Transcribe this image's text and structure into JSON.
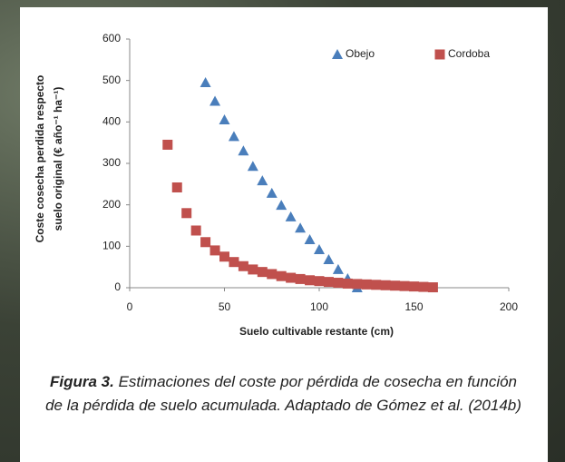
{
  "chart_data": {
    "type": "scatter",
    "x_label": "Suelo cultivable restante (cm)",
    "y_label_lines": [
      "Coste  cosecha perdida respecto",
      "suelo original (€ año⁻¹ ha⁻¹)"
    ],
    "xlim": [
      0,
      200
    ],
    "xticks": [
      0,
      50,
      100,
      150,
      200
    ],
    "ylim": [
      0,
      600
    ],
    "yticks": [
      0,
      100,
      200,
      300,
      400,
      500,
      600
    ],
    "grid": false,
    "legend": "top-right",
    "series": [
      {
        "name": "Obejo",
        "color": "#4a7ebb",
        "marker": "triangle",
        "x": [
          40,
          45,
          50,
          55,
          60,
          65,
          70,
          75,
          80,
          85,
          90,
          95,
          100,
          105,
          110,
          115,
          120
        ],
        "values": [
          495,
          450,
          405,
          365,
          330,
          293,
          258,
          228,
          199,
          171,
          144,
          116,
          92,
          68,
          44,
          22,
          0
        ]
      },
      {
        "name": "Cordoba",
        "color": "#c0504d",
        "marker": "square",
        "x": [
          20,
          25,
          30,
          35,
          40,
          45,
          50,
          55,
          60,
          65,
          70,
          75,
          80,
          85,
          90,
          95,
          100,
          105,
          110,
          115,
          120,
          125,
          130,
          135,
          140,
          145,
          150,
          155,
          160
        ],
        "values": [
          345,
          242,
          180,
          138,
          110,
          90,
          75,
          62,
          52,
          44,
          38,
          33,
          28,
          24,
          21,
          18,
          16,
          14,
          12,
          10,
          9,
          8,
          7,
          6,
          5,
          4,
          3,
          2,
          1
        ]
      }
    ]
  },
  "caption": {
    "label": "Figura 3.",
    "text": "Estimaciones del coste por pérdida de cosecha en función de la pérdida de suelo acumulada. Adaptado de Gómez et al. (2014b)"
  }
}
